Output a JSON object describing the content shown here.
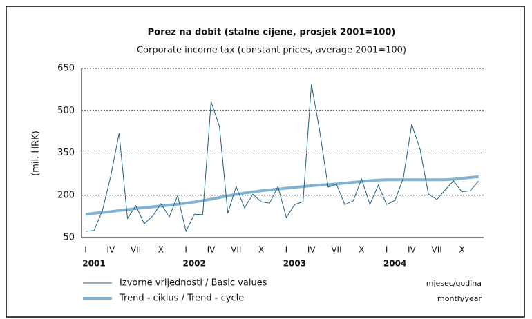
{
  "chart_data": {
    "type": "line",
    "title": "Porez na dobit (stalne cijene, prosjek 2001=100)",
    "subtitle": "Corporate income tax (constant prices, average 2001=100)",
    "y_label": "(mil. HRK)",
    "x_note": [
      "mjesec/godina",
      "month/year"
    ],
    "categories": [
      "I",
      null,
      null,
      "IV",
      null,
      null,
      "VII",
      null,
      null,
      "X",
      null,
      null,
      "I",
      null,
      null,
      "IV",
      null,
      null,
      "VII",
      null,
      null,
      "X",
      null,
      null,
      "I",
      null,
      null,
      "IV",
      null,
      null,
      "VII",
      null,
      null,
      "X",
      null,
      null,
      "I",
      null,
      null,
      "IV",
      null,
      null,
      "VII",
      null,
      null,
      "X",
      null,
      null
    ],
    "year_labels": [
      "2001",
      "2002",
      "2003",
      "2004"
    ],
    "series": [
      {
        "name": "Izvorne vrijednosti / Basic values",
        "color": "#1f5f7a",
        "width": 1,
        "values": [
          72,
          75,
          145,
          268,
          420,
          118,
          163,
          99,
          126,
          170,
          123,
          199,
          72,
          133,
          131,
          532,
          444,
          136,
          231,
          155,
          204,
          177,
          172,
          231,
          121,
          167,
          177,
          594,
          427,
          229,
          239,
          167,
          180,
          258,
          167,
          236,
          167,
          182,
          261,
          452,
          363,
          204,
          185,
          219,
          251,
          212,
          216,
          250
        ]
      },
      {
        "name": "Trend - ciklus / Trend - cycle",
        "color": "#7fb3d1",
        "width": 4,
        "values": [
          132,
          136,
          139,
          142,
          146,
          149,
          153,
          156,
          159,
          162,
          165,
          168,
          172,
          176,
          181,
          186,
          192,
          198,
          203,
          208,
          212,
          216,
          219,
          222,
          225,
          228,
          231,
          234,
          236,
          238,
          240,
          243,
          246,
          249,
          252,
          254,
          255,
          255,
          255,
          255,
          255,
          255,
          255,
          255,
          257,
          260,
          263,
          266
        ]
      }
    ],
    "ylim": [
      50,
      650
    ],
    "yticks": [
      50,
      200,
      350,
      500,
      650
    ],
    "grid": true
  }
}
